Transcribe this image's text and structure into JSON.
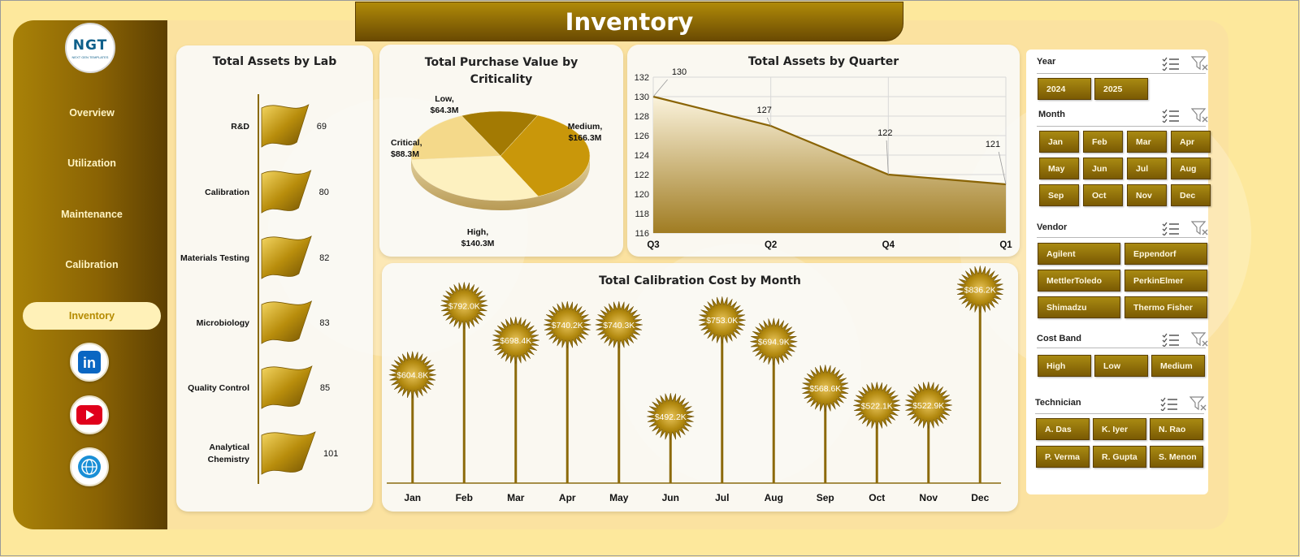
{
  "page_title": "Inventory",
  "logo": {
    "text": "NGT",
    "subtext": "NEXT GEN TEMPLATES"
  },
  "sidebar": {
    "items": [
      {
        "label": "Overview",
        "active": false
      },
      {
        "label": "Utilization",
        "active": false
      },
      {
        "label": "Maintenance",
        "active": false
      },
      {
        "label": "Calibration",
        "active": false
      },
      {
        "label": "Inventory",
        "active": true
      }
    ],
    "social": [
      {
        "name": "linkedin-icon",
        "text": "in"
      },
      {
        "name": "youtube-icon",
        "text": "▶"
      },
      {
        "name": "globe-icon",
        "text": ""
      }
    ]
  },
  "charts": {
    "lab": {
      "title": "Total Assets by Lab",
      "chart_data": {
        "type": "bar",
        "orientation": "horizontal",
        "categories": [
          "R&D",
          "Calibration",
          "Materials Testing",
          "Microbiology",
          "Quality Control",
          "Analytical Chemistry"
        ],
        "values": [
          69,
          80,
          82,
          83,
          85,
          101
        ]
      }
    },
    "criticality": {
      "title": "Total Purchase Value by Criticality",
      "chart_data": {
        "type": "pie",
        "slices": [
          {
            "label": "Low,",
            "value_label": "$64.3M",
            "value": 64.3
          },
          {
            "label": "Medium,",
            "value_label": "$166.3M",
            "value": 166.3
          },
          {
            "label": "High,",
            "value_label": "$140.3M",
            "value": 140.3
          },
          {
            "label": "Critical,",
            "value_label": "$88.3M",
            "value": 88.3
          }
        ]
      }
    },
    "quarter": {
      "title": "Total Assets by Quarter",
      "chart_data": {
        "type": "area",
        "categories": [
          "Q3",
          "Q2",
          "Q4",
          "Q1"
        ],
        "values": [
          130,
          127,
          122,
          121
        ],
        "ylim": [
          116,
          132
        ],
        "yticks": [
          116,
          118,
          120,
          122,
          124,
          126,
          128,
          130,
          132
        ],
        "grid": true
      }
    },
    "calibration": {
      "title": "Total Calibration Cost by Month",
      "chart_data": {
        "type": "bar",
        "categories": [
          "Jan",
          "Feb",
          "Mar",
          "Apr",
          "May",
          "Jun",
          "Jul",
          "Aug",
          "Sep",
          "Oct",
          "Nov",
          "Dec"
        ],
        "values": [
          604.8,
          792.0,
          698.4,
          740.2,
          740.3,
          492.2,
          753.0,
          694.9,
          568.6,
          522.1,
          522.9,
          836.2
        ],
        "labels": [
          "$604.8K",
          "$792.0K",
          "$698.4K",
          "$740.2K",
          "$740.3K",
          "$492.2K",
          "$753.0K",
          "$694.9K",
          "$568.6K",
          "$522.1K",
          "$522.9K",
          "$836.2K"
        ],
        "unit": "$K"
      }
    }
  },
  "filters": {
    "year": {
      "label": "Year",
      "options": [
        "2024",
        "2025"
      ]
    },
    "month": {
      "label": "Month",
      "options": [
        "Jan",
        "Feb",
        "Mar",
        "Apr",
        "May",
        "Jun",
        "Jul",
        "Aug",
        "Sep",
        "Oct",
        "Nov",
        "Dec"
      ]
    },
    "vendor": {
      "label": "Vendor",
      "options": [
        "Agilent",
        "Eppendorf",
        "MettlerToledo",
        "PerkinElmer",
        "Shimadzu",
        "Thermo Fisher"
      ]
    },
    "cost_band": {
      "label": "Cost Band",
      "options": [
        "High",
        "Low",
        "Medium"
      ]
    },
    "technician": {
      "label": "Technician",
      "options": [
        "A. Das",
        "K. Iyer",
        "N. Rao",
        "P. Verma",
        "R. Gupta",
        "S. Menon"
      ]
    }
  },
  "colors": {
    "accent": "#8a6304",
    "gold": "#a98208",
    "light": "#fff1b8"
  }
}
